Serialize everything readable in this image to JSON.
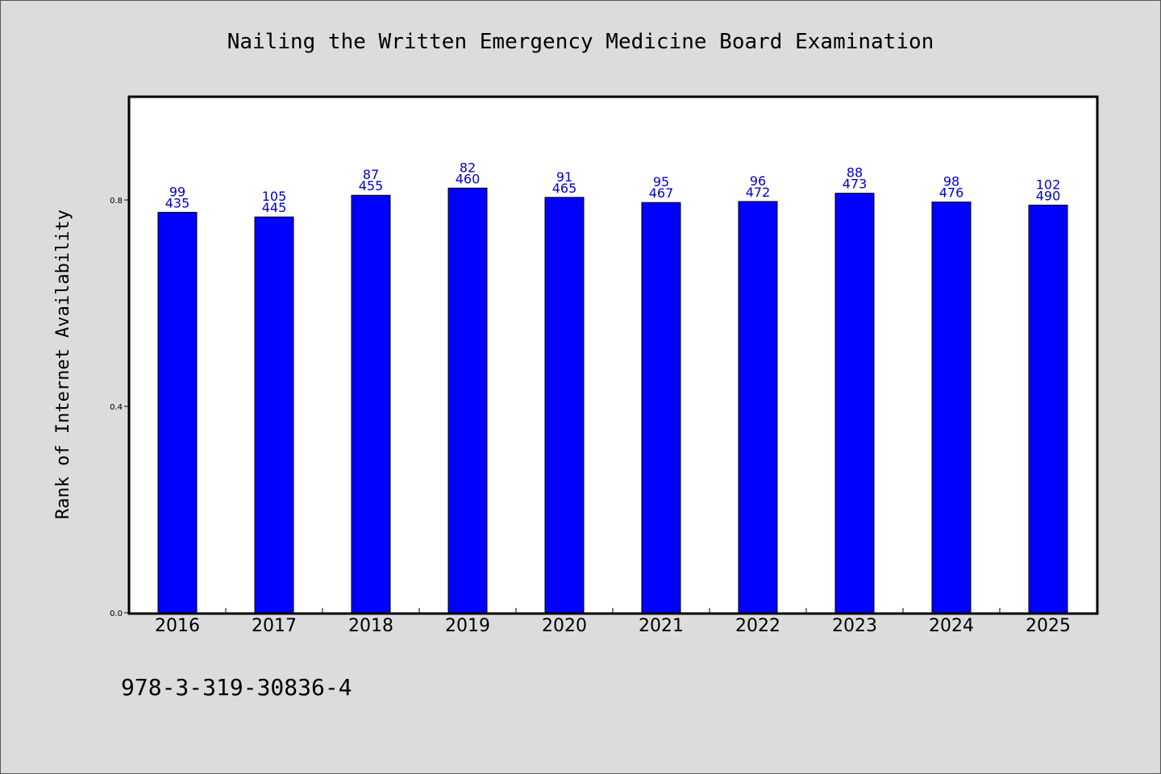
{
  "chart_data": {
    "type": "bar",
    "title": "Nailing the Written Emergency Medicine Board Examination",
    "ylabel": "Rank of Internet Availability",
    "xlabel": "",
    "categories": [
      "2016",
      "2017",
      "2018",
      "2019",
      "2020",
      "2021",
      "2022",
      "2023",
      "2024",
      "2025"
    ],
    "values": [
      0.776,
      0.767,
      0.809,
      0.823,
      0.805,
      0.795,
      0.797,
      0.813,
      0.796,
      0.79
    ],
    "labels_top": [
      "99",
      "105",
      "87",
      "82",
      "91",
      "95",
      "96",
      "88",
      "98",
      "102"
    ],
    "labels_bottom": [
      "435",
      "445",
      "455",
      "460",
      "465",
      "467",
      "472",
      "473",
      "476",
      "490"
    ],
    "yticks": [
      "0.0",
      "0.4",
      "0.8"
    ],
    "ytick_values": [
      0.0,
      0.4,
      0.8
    ],
    "ylim": [
      0,
      1.0
    ],
    "grid": false,
    "legend": "none",
    "bar_color": "#0000ff",
    "label_color": "#0000cc",
    "background_color": "#dcdcdc",
    "plot_background_color": "#ffffff"
  },
  "footer_text": "978-3-319-30836-4"
}
